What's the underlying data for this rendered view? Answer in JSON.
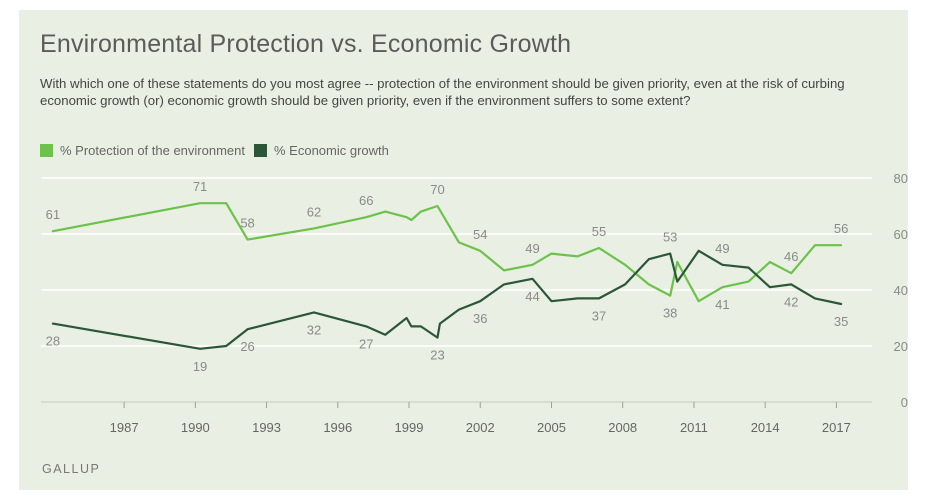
{
  "title": "Environmental Protection vs. Economic Growth",
  "subtitle": "With which one of these statements do you most agree -- protection of the environment should be given priority, even at the risk of curbing economic growth (or) economic growth should be given priority, even if the environment suffers to some extent?",
  "source": "GALLUP",
  "colors": {
    "background": "#e9f0e3",
    "environment": "#6cc24a",
    "economy": "#2b5738",
    "labels": "#8a8a8a",
    "grid": "#ffffff"
  },
  "chart_data": {
    "type": "line",
    "title": "Environmental Protection vs. Economic Growth",
    "xlabel": "",
    "ylabel": "",
    "x_ticks": [
      "1987",
      "1990",
      "1993",
      "1996",
      "1999",
      "2002",
      "2005",
      "2008",
      "2011",
      "2014",
      "2017"
    ],
    "y_ticks": [
      "0",
      "20",
      "40",
      "60",
      "80"
    ],
    "ylim": [
      0,
      80
    ],
    "xlim": [
      1983.5,
      2018.5
    ],
    "y_axis_position": "right",
    "grid": true,
    "legend_position": "top-left",
    "series": [
      {
        "name": "% Protection of the environment",
        "color": "#6cc24a",
        "x": [
          1984,
          1990.2,
          1991.3,
          1992.2,
          1995,
          1997.2,
          1998,
          1998.9,
          1999.1,
          1999.5,
          2000.2,
          2001.1,
          2002,
          2003,
          2004.2,
          2005,
          2006.1,
          2007,
          2008.1,
          2009.1,
          2010,
          2010.3,
          2011.2,
          2012.2,
          2013.3,
          2014.2,
          2015.1,
          2016.1,
          2017.2
        ],
        "values": [
          61,
          71,
          71,
          58,
          62,
          66,
          68,
          66,
          65,
          68,
          70,
          57,
          54,
          47,
          49,
          53,
          52,
          55,
          49,
          42,
          38,
          50,
          36,
          41,
          43,
          50,
          46,
          56,
          56
        ]
      },
      {
        "name": "% Economic growth",
        "color": "#2b5738",
        "x": [
          1984,
          1990.2,
          1991.3,
          1992.2,
          1995,
          1997.2,
          1998,
          1998.9,
          1999.1,
          1999.5,
          2000.2,
          2000.3,
          2001.1,
          2002,
          2003,
          2004.2,
          2005,
          2006.1,
          2007,
          2008.1,
          2009.1,
          2010,
          2010.3,
          2011.2,
          2012.2,
          2013.3,
          2014.2,
          2015.1,
          2016.1,
          2017.2
        ],
        "values": [
          28,
          19,
          20,
          26,
          32,
          27,
          24,
          30,
          27,
          27,
          23,
          28,
          33,
          36,
          42,
          44,
          36,
          37,
          37,
          42,
          51,
          53,
          43,
          54,
          49,
          48,
          41,
          42,
          37,
          35
        ]
      }
    ],
    "data_labels": [
      {
        "series": 0,
        "x": 1984,
        "text": "61"
      },
      {
        "series": 0,
        "x": 1990.2,
        "text": "71"
      },
      {
        "series": 0,
        "x": 1992.2,
        "text": "58"
      },
      {
        "series": 0,
        "x": 1995,
        "text": "62"
      },
      {
        "series": 0,
        "x": 1997.2,
        "text": "66"
      },
      {
        "series": 0,
        "x": 2000.2,
        "text": "70"
      },
      {
        "series": 0,
        "x": 2002,
        "text": "54"
      },
      {
        "series": 0,
        "x": 2004.2,
        "text": "49"
      },
      {
        "series": 0,
        "x": 2007,
        "text": "55"
      },
      {
        "series": 0,
        "x": 2010,
        "text": "38"
      },
      {
        "series": 0,
        "x": 2012.2,
        "text": "41"
      },
      {
        "series": 0,
        "x": 2015.1,
        "text": "46"
      },
      {
        "series": 0,
        "x": 2017.2,
        "text": "56"
      },
      {
        "series": 1,
        "x": 1984,
        "text": "28"
      },
      {
        "series": 1,
        "x": 1990.2,
        "text": "19"
      },
      {
        "series": 1,
        "x": 1992.2,
        "text": "26"
      },
      {
        "series": 1,
        "x": 1995,
        "text": "32"
      },
      {
        "series": 1,
        "x": 1997.2,
        "text": "27"
      },
      {
        "series": 1,
        "x": 2000.2,
        "text": "23"
      },
      {
        "series": 1,
        "x": 2002,
        "text": "36"
      },
      {
        "series": 1,
        "x": 2004.2,
        "text": "44"
      },
      {
        "series": 1,
        "x": 2007,
        "text": "37"
      },
      {
        "series": 1,
        "x": 2010,
        "text": "53"
      },
      {
        "series": 1,
        "x": 2012.2,
        "text": "49"
      },
      {
        "series": 1,
        "x": 2015.1,
        "text": "42"
      },
      {
        "series": 1,
        "x": 2017.2,
        "text": "35"
      }
    ]
  }
}
